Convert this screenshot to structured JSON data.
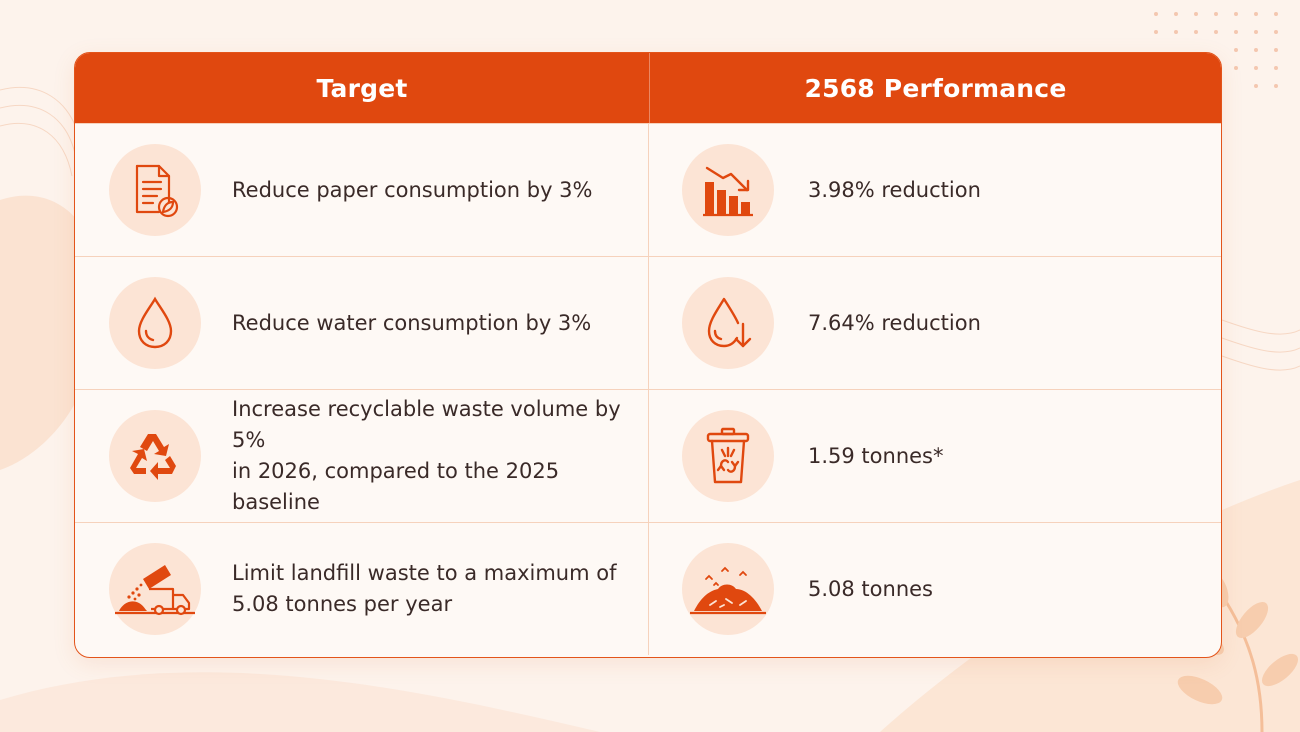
{
  "table": {
    "header": {
      "target": "Target",
      "performance": "2568 Performance"
    },
    "rows": [
      {
        "target_icon": "paper-document-leaf-icon",
        "target": "Reduce paper consumption by 3%",
        "perf_icon": "decreasing-bar-chart-icon",
        "performance": "3.98% reduction"
      },
      {
        "target_icon": "water-drop-icon",
        "target": "Reduce water consumption by 3%",
        "perf_icon": "water-drop-down-arrow-icon",
        "performance": "7.64% reduction"
      },
      {
        "target_icon": "recycle-icon",
        "target": "Increase recyclable waste volume by 5%\nin 2026, compared to the 2025 baseline",
        "perf_icon": "recycle-bin-icon",
        "performance": "1.59 tonnes*"
      },
      {
        "target_icon": "dump-truck-icon",
        "target": "Limit landfill waste to a maximum of\n5.08 tonnes per year",
        "perf_icon": "landfill-pile-icon",
        "performance": "5.08 tonnes"
      }
    ]
  },
  "colors": {
    "accent": "#e0480f",
    "icon_bg": "#fce4d5",
    "background": "#fdf3ec",
    "text": "#3a2a28"
  }
}
